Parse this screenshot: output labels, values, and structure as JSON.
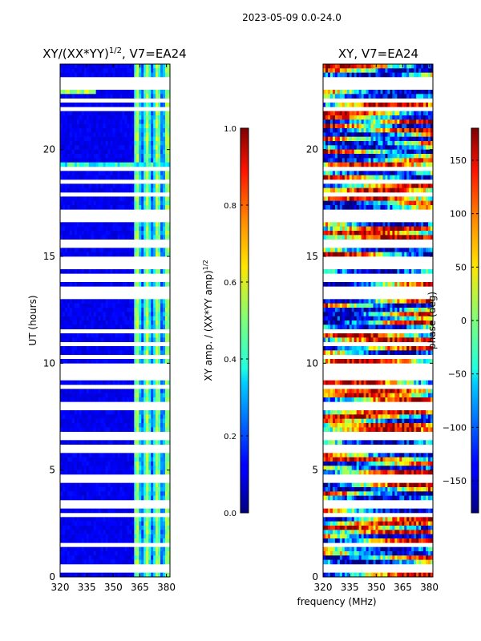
{
  "figure": {
    "suptitle": "2023-05-09 0.0-24.0",
    "xlabel_shared": "frequency (MHz)"
  },
  "chart_data": [
    {
      "type": "heatmap",
      "title_prefix": "XY/(XX*YY)",
      "title_exp": "1/2",
      "title_suffix": ", V7=EA24",
      "ylabel": "UT (hours)",
      "xlim": [
        320,
        382
      ],
      "ylim": [
        0,
        24
      ],
      "xticks": [
        320,
        335,
        350,
        365,
        380
      ],
      "yticks": [
        0,
        5,
        10,
        15,
        20
      ],
      "colorbar": {
        "label_prefix": "XY amp. / (XX*YY amp)",
        "label_exp": "1/2",
        "range": [
          0.0,
          1.0
        ],
        "ticks": [
          "0.0",
          "0.2",
          "0.4",
          "0.6",
          "0.8",
          "1.0"
        ],
        "colormap": "jet"
      },
      "gaps_hours": [
        0.25,
        0.45,
        1.0,
        1.45,
        1.6,
        2.9,
        3.3,
        3.45,
        3.55,
        4.5,
        4.65,
        5.9,
        6.0,
        6.1,
        6.5,
        6.6,
        6.75,
        7.2,
        7.6,
        7.9,
        8.05,
        8.6,
        8.85,
        9.0,
        9.3,
        9.45,
        9.65,
        9.9,
        10.3,
        10.6,
        10.9,
        11.2,
        11.5,
        11.8,
        12.0,
        12.2,
        13.1,
        13.3,
        13.5,
        13.9,
        14.1,
        14.5,
        14.7,
        14.9,
        15.5,
        15.65,
        16.4,
        16.7,
        16.85,
        17.1,
        17.6,
        17.9,
        18.2,
        18.5,
        18.8,
        19.0,
        19.15,
        21.0,
        21.6,
        21.9,
        22.3,
        22.6,
        22.9,
        23.1,
        23.3
      ],
      "band": {
        "freq_start": 362,
        "freq_end": 382,
        "amp_typical": 0.45
      },
      "background_amp": 0.08
    },
    {
      "type": "heatmap",
      "title": "XY, V7=EA24",
      "xlim": [
        320,
        382
      ],
      "ylim": [
        0,
        24
      ],
      "xticks": [
        320,
        335,
        350,
        365,
        380
      ],
      "yticks": [
        0,
        5,
        10,
        15,
        20
      ],
      "colorbar": {
        "label": "phase (deg)",
        "range": [
          -180,
          180
        ],
        "ticks": [
          "150",
          "100",
          "50",
          "0",
          "−50",
          "−100",
          "−150"
        ],
        "colormap": "jet"
      },
      "gaps_hours": [
        0.25,
        0.45,
        1.0,
        1.45,
        1.6,
        2.9,
        3.3,
        3.45,
        3.55,
        4.5,
        4.65,
        5.9,
        6.0,
        6.1,
        6.5,
        6.6,
        6.75,
        7.2,
        7.6,
        7.9,
        8.05,
        8.6,
        8.85,
        9.0,
        9.3,
        9.45,
        9.65,
        9.9,
        10.3,
        10.6,
        10.9,
        11.2,
        11.5,
        11.8,
        12.0,
        12.2,
        13.1,
        13.3,
        13.5,
        13.9,
        14.1,
        14.5,
        14.7,
        14.9,
        15.5,
        15.65,
        16.4,
        16.7,
        16.85,
        17.1,
        17.6,
        17.9,
        18.2,
        18.5,
        18.8,
        19.0,
        19.15,
        21.0,
        21.6,
        21.9,
        22.3,
        22.6,
        22.9,
        23.1,
        23.3
      ]
    }
  ]
}
